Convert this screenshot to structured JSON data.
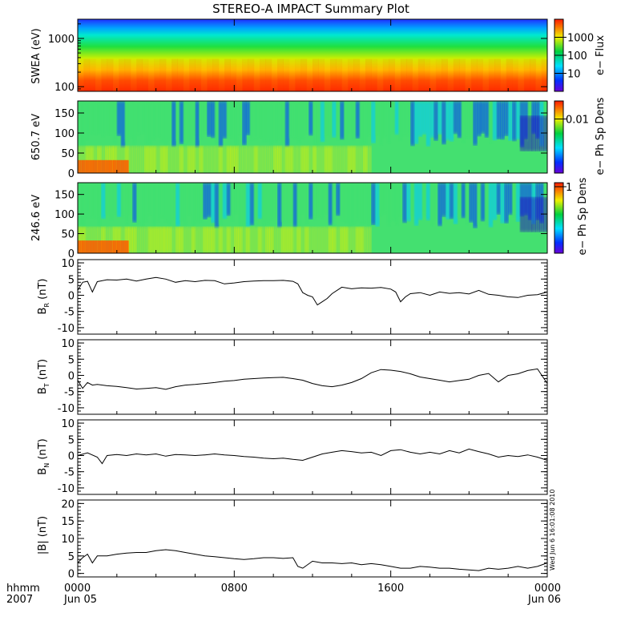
{
  "chart_data": {
    "title": "STEREO-A IMPACT Summary Plot",
    "x_axis": {
      "label_line1": "hhmm",
      "label_line2": "2007",
      "range_hours": [
        0,
        24
      ],
      "ticks": [
        {
          "hour": 0,
          "line1": "0000",
          "line2": "Jun 05"
        },
        {
          "hour": 8,
          "line1": "0800",
          "line2": ""
        },
        {
          "hour": 16,
          "line1": "1600",
          "line2": ""
        },
        {
          "hour": 24,
          "line1": "0000",
          "line2": "Jun 06"
        }
      ]
    },
    "panels": [
      {
        "id": "swea",
        "type": "heatmap",
        "ylabel": "SWEA (eV)",
        "yscale": "log",
        "ylim": [
          80,
          2500
        ],
        "yticks": [
          "100",
          "1000"
        ],
        "colorbar_label": "e− Flux",
        "colorbar_ticks": [
          "10",
          "100",
          "1000"
        ],
        "colorbar_range_log": [
          0,
          4
        ],
        "description_bands": [
          {
            "energy": 2000,
            "color": "blue"
          },
          {
            "energy": 1000,
            "color": "cyan"
          },
          {
            "energy": 500,
            "color": "green"
          },
          {
            "energy": 300,
            "color": "yellow"
          },
          {
            "energy": 100,
            "color": "red"
          }
        ]
      },
      {
        "id": "pad650",
        "type": "heatmap",
        "ylabel": "650.7 eV",
        "ylim": [
          0,
          180
        ],
        "yticks": [
          "0",
          "50",
          "100",
          "150"
        ],
        "colorbar_label": "e− Ph Sp Dens",
        "colorbar_ticks": [
          "0.01"
        ]
      },
      {
        "id": "pad246",
        "type": "heatmap",
        "ylabel": "246.6 eV",
        "ylim": [
          0,
          180
        ],
        "yticks": [
          "0",
          "50",
          "100",
          "150"
        ],
        "colorbar_label": "e− Ph Sp Dens",
        "colorbar_ticks": [
          "1"
        ]
      },
      {
        "id": "br",
        "type": "line",
        "ylabel_main": "B",
        "ylabel_sub": "R",
        "ylabel_unit": " (nT)",
        "ylim": [
          -12,
          11
        ],
        "yticks": [
          -10,
          -5,
          0,
          5,
          10
        ],
        "x_hours": [
          0,
          0.25,
          0.5,
          0.75,
          1,
          1.5,
          2,
          2.5,
          3,
          3.5,
          4,
          4.5,
          5,
          5.5,
          6,
          6.5,
          7,
          7.5,
          8,
          8.5,
          9,
          9.5,
          10,
          10.5,
          11,
          11.25,
          11.5,
          11.75,
          12,
          12.25,
          12.5,
          12.75,
          13,
          13.5,
          14,
          14.5,
          15,
          15.5,
          16,
          16.25,
          16.5,
          16.75,
          17,
          17.5,
          18,
          18.5,
          19,
          19.5,
          20,
          20.5,
          21,
          21.5,
          22,
          22.5,
          23,
          23.5,
          24
        ],
        "values": [
          1.5,
          4,
          4.3,
          1,
          4.2,
          4.8,
          4.7,
          5,
          4.4,
          5,
          5.5,
          5,
          4,
          4.5,
          4.2,
          4.6,
          4.5,
          3.5,
          3.8,
          4.2,
          4.4,
          4.5,
          4.5,
          4.6,
          4.3,
          3.5,
          0.8,
          0,
          -0.5,
          -3,
          -2,
          -1,
          0.5,
          2.5,
          2,
          2.3,
          2.2,
          2.4,
          1.9,
          1,
          -2,
          -0.5,
          0.5,
          0.8,
          0,
          1,
          0.6,
          0.8,
          0.4,
          1.5,
          0.3,
          0,
          -0.5,
          -0.7,
          0,
          0.2,
          1
        ]
      },
      {
        "id": "bt",
        "type": "line",
        "ylabel_main": "B",
        "ylabel_sub": "T",
        "ylabel_unit": " (nT)",
        "ylim": [
          -12,
          11
        ],
        "yticks": [
          -10,
          -5,
          0,
          5,
          10
        ],
        "x_hours": [
          0,
          0.25,
          0.5,
          0.75,
          1,
          1.5,
          2,
          2.5,
          3,
          3.5,
          4,
          4.5,
          5,
          5.5,
          6,
          6.5,
          7,
          7.5,
          8,
          8.5,
          9,
          9.5,
          10,
          10.5,
          11,
          11.5,
          12,
          12.5,
          13,
          13.5,
          14,
          14.5,
          15,
          15.5,
          16,
          16.5,
          17,
          17.5,
          18,
          18.5,
          19,
          19.5,
          20,
          20.5,
          21,
          21.5,
          22,
          22.5,
          23,
          23.5,
          24
        ],
        "values": [
          -1.5,
          -4,
          -2.2,
          -3,
          -2.8,
          -3.2,
          -3.4,
          -3.8,
          -4.2,
          -4,
          -3.8,
          -4.3,
          -3.5,
          -3,
          -2.8,
          -2.5,
          -2.2,
          -1.8,
          -1.6,
          -1.2,
          -1,
          -0.8,
          -0.7,
          -0.6,
          -1,
          -1.5,
          -2.5,
          -3.2,
          -3.5,
          -3,
          -2.2,
          -1,
          0.8,
          1.8,
          1.6,
          1.2,
          0.5,
          -0.5,
          -1,
          -1.5,
          -2,
          -1.6,
          -1.2,
          0,
          0.6,
          -2,
          0,
          0.5,
          1.5,
          2,
          -2.5
        ]
      },
      {
        "id": "bn",
        "type": "line",
        "ylabel_main": "B",
        "ylabel_sub": "N",
        "ylabel_unit": " (nT)",
        "ylim": [
          -12,
          11
        ],
        "yticks": [
          -10,
          -5,
          0,
          5,
          10
        ],
        "x_hours": [
          0,
          0.5,
          1,
          1.25,
          1.5,
          2,
          2.5,
          3,
          3.5,
          4,
          4.5,
          5,
          5.5,
          6,
          6.5,
          7,
          7.5,
          8,
          8.5,
          9,
          9.5,
          10,
          10.5,
          11,
          11.5,
          12,
          12.5,
          13,
          13.5,
          14,
          14.5,
          15,
          15.5,
          16,
          16.5,
          17,
          17.5,
          18,
          18.5,
          19,
          19.5,
          20,
          20.5,
          21,
          21.5,
          22,
          22.5,
          23,
          23.5,
          24
        ],
        "values": [
          0,
          0.8,
          -0.5,
          -2.5,
          0,
          0.3,
          0,
          0.5,
          0.2,
          0.5,
          -0.2,
          0.3,
          0.2,
          0,
          0.2,
          0.5,
          0.2,
          0,
          -0.3,
          -0.5,
          -0.8,
          -1,
          -0.8,
          -1.2,
          -1.5,
          -0.5,
          0.5,
          1,
          1.5,
          1.2,
          0.8,
          1,
          0,
          1.5,
          1.8,
          1,
          0.5,
          1,
          0.5,
          1.5,
          0.8,
          2,
          1.2,
          0.5,
          -0.5,
          0,
          -0.3,
          0.2,
          -0.5,
          -1.5
        ]
      },
      {
        "id": "bmag",
        "type": "line",
        "ylabel": "|B| (nT)",
        "ylim": [
          -1,
          21
        ],
        "yticks": [
          0,
          5,
          10,
          15,
          20
        ],
        "x_hours": [
          0,
          0.25,
          0.5,
          0.75,
          1,
          1.5,
          2,
          2.5,
          3,
          3.5,
          4,
          4.5,
          5,
          5.5,
          6,
          6.5,
          7,
          7.5,
          8,
          8.5,
          9,
          9.5,
          10,
          10.5,
          11,
          11.25,
          11.5,
          12,
          12.5,
          13,
          13.5,
          14,
          14.5,
          15,
          15.5,
          16,
          16.5,
          17,
          17.5,
          18,
          18.5,
          19,
          19.5,
          20,
          20.5,
          21,
          21.5,
          22,
          22.5,
          23,
          23.5,
          24
        ],
        "values": [
          3,
          4.5,
          5.5,
          3,
          5,
          5,
          5.5,
          5.8,
          6,
          6,
          6.5,
          6.8,
          6.5,
          6,
          5.5,
          5,
          4.8,
          4.5,
          4.2,
          4,
          4.2,
          4.5,
          4.5,
          4.3,
          4.5,
          2,
          1.5,
          3.5,
          3,
          3,
          2.8,
          3,
          2.5,
          2.8,
          2.5,
          2,
          1.5,
          1.5,
          2,
          1.8,
          1.5,
          1.5,
          1.2,
          1,
          0.8,
          1.5,
          1.2,
          1.5,
          2,
          1.5,
          2,
          3
        ]
      }
    ],
    "timestamp": "Wed Jun  6 16:01:08 2010"
  }
}
